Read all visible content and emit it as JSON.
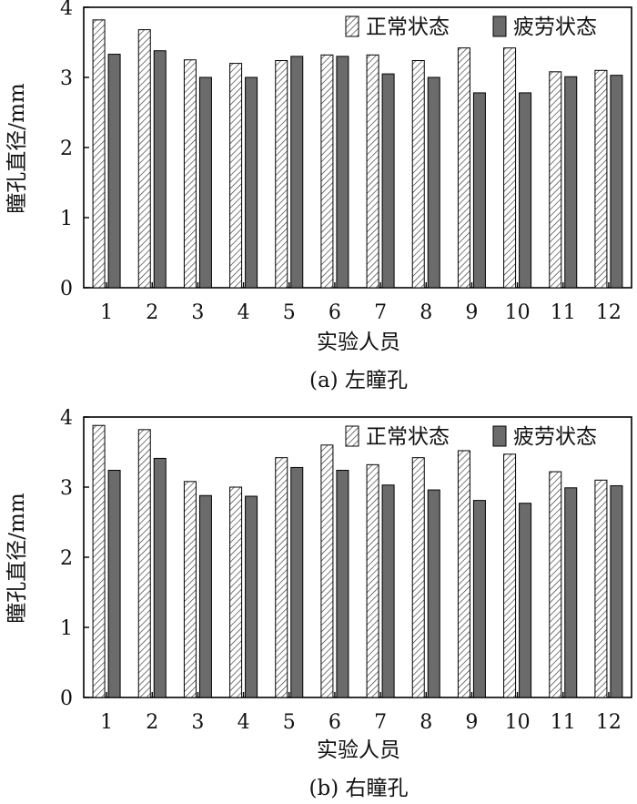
{
  "colors": {
    "fatigue": "#6b6b6b",
    "normal_hatch": "#ffffff"
  },
  "chart_data": [
    {
      "type": "bar",
      "caption": "(a) 左瞳孔",
      "xlabel": "实验人员",
      "ylabel": "瞳孔直径/mm",
      "ylim": [
        0,
        4
      ],
      "yticks": [
        0,
        1,
        2,
        3,
        4
      ],
      "legend_position": "top-right",
      "categories": [
        "1",
        "2",
        "3",
        "4",
        "5",
        "6",
        "7",
        "8",
        "9",
        "10",
        "11",
        "12"
      ],
      "series": [
        {
          "name": "正常状态",
          "values": [
            3.82,
            3.68,
            3.25,
            3.2,
            3.24,
            3.32,
            3.32,
            3.24,
            3.42,
            3.42,
            3.08,
            3.1
          ]
        },
        {
          "name": "疲劳状态",
          "values": [
            3.33,
            3.38,
            3.0,
            3.0,
            3.3,
            3.3,
            3.05,
            3.0,
            2.78,
            2.78,
            3.01,
            3.03
          ]
        }
      ]
    },
    {
      "type": "bar",
      "caption": "(b) 右瞳孔",
      "xlabel": "实验人员",
      "ylabel": "瞳孔直径/mm",
      "ylim": [
        0,
        4
      ],
      "yticks": [
        0,
        1,
        2,
        3,
        4
      ],
      "legend_position": "top-right",
      "categories": [
        "1",
        "2",
        "3",
        "4",
        "5",
        "6",
        "7",
        "8",
        "9",
        "10",
        "11",
        "12"
      ],
      "series": [
        {
          "name": "正常状态",
          "values": [
            3.88,
            3.82,
            3.08,
            3.0,
            3.42,
            3.6,
            3.32,
            3.42,
            3.52,
            3.47,
            3.22,
            3.1
          ]
        },
        {
          "name": "疲劳状态",
          "values": [
            3.24,
            3.41,
            2.88,
            2.87,
            3.28,
            3.24,
            3.03,
            2.96,
            2.81,
            2.77,
            2.99,
            3.02
          ]
        }
      ]
    }
  ]
}
